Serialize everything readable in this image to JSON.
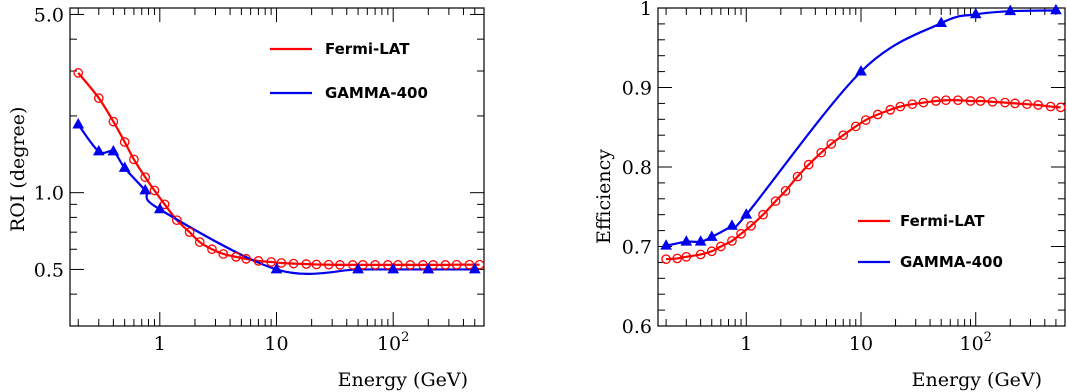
{
  "colors": {
    "fermi": "#ff0000",
    "gamma": "#0000ee"
  },
  "chart_data": [
    {
      "id": "roi",
      "type": "line",
      "xscale": "log",
      "yscale": "log",
      "xlim": [
        0.17,
        600
      ],
      "ylim": [
        0.3,
        5.3
      ],
      "xlabel": "Energy (GeV)",
      "ylabel": "ROI (degree)",
      "xticks": [
        {
          "value": 1,
          "label": "1"
        },
        {
          "value": 10,
          "label": "10"
        },
        {
          "value": 100,
          "label": "10",
          "sup": "2"
        }
      ],
      "yticks": [
        {
          "value": 0.5,
          "label": "0.5"
        },
        {
          "value": 1.0,
          "label": "1.0"
        },
        {
          "value": 5.0,
          "label": "5.0"
        }
      ],
      "grid": false,
      "legend_position": "top-right",
      "series": [
        {
          "name": "Fermi-LAT",
          "color_key": "fermi",
          "marker": "open-circle",
          "points": [
            [
              0.2,
              2.95
            ],
            [
              0.3,
              2.35
            ],
            [
              0.4,
              1.9
            ],
            [
              0.5,
              1.58
            ],
            [
              0.6,
              1.35
            ],
            [
              0.75,
              1.15
            ],
            [
              0.9,
              1.02
            ],
            [
              1.1,
              0.9
            ],
            [
              1.4,
              0.78
            ],
            [
              1.8,
              0.7
            ],
            [
              2.2,
              0.64
            ],
            [
              2.8,
              0.6
            ],
            [
              3.5,
              0.575
            ],
            [
              4.5,
              0.56
            ],
            [
              5.5,
              0.55
            ],
            [
              7,
              0.54
            ],
            [
              9,
              0.535
            ],
            [
              11,
              0.53
            ],
            [
              14,
              0.527
            ],
            [
              18,
              0.525
            ],
            [
              22,
              0.523
            ],
            [
              28,
              0.522
            ],
            [
              35,
              0.521
            ],
            [
              45,
              0.521
            ],
            [
              55,
              0.521
            ],
            [
              70,
              0.521
            ],
            [
              90,
              0.521
            ],
            [
              110,
              0.521
            ],
            [
              140,
              0.521
            ],
            [
              180,
              0.521
            ],
            [
              220,
              0.521
            ],
            [
              280,
              0.521
            ],
            [
              350,
              0.522
            ],
            [
              450,
              0.522
            ],
            [
              550,
              0.522
            ]
          ]
        },
        {
          "name": "GAMMA-400",
          "color_key": "gamma",
          "marker": "filled-triangle",
          "points": [
            [
              0.2,
              1.85
            ],
            [
              0.3,
              1.45
            ],
            [
              0.4,
              1.45
            ],
            [
              0.5,
              1.25
            ],
            [
              0.75,
              1.02
            ],
            [
              1.0,
              0.86
            ],
            [
              10,
              0.5
            ],
            [
              50,
              0.5
            ],
            [
              100,
              0.5
            ],
            [
              200,
              0.5
            ],
            [
              500,
              0.5
            ]
          ]
        }
      ]
    },
    {
      "id": "efficiency",
      "type": "line",
      "xscale": "log",
      "yscale": "linear",
      "xlim": [
        0.17,
        600
      ],
      "ylim": [
        0.6,
        1.0
      ],
      "xlabel": "Energy (GeV)",
      "ylabel": "Efficiency",
      "xticks": [
        {
          "value": 1,
          "label": "1"
        },
        {
          "value": 10,
          "label": "10"
        },
        {
          "value": 100,
          "label": "10",
          "sup": "2"
        }
      ],
      "yticks": [
        {
          "value": 0.6,
          "label": "0.6"
        },
        {
          "value": 0.7,
          "label": "0.7"
        },
        {
          "value": 0.8,
          "label": "0.8"
        },
        {
          "value": 0.9,
          "label": "0.9"
        },
        {
          "value": 1.0,
          "label": "1"
        }
      ],
      "grid": false,
      "legend_position": "bottom-right",
      "series": [
        {
          "name": "Fermi-LAT",
          "color_key": "fermi",
          "marker": "open-circle",
          "points": [
            [
              0.2,
              0.684
            ],
            [
              0.25,
              0.685
            ],
            [
              0.3,
              0.687
            ],
            [
              0.4,
              0.69
            ],
            [
              0.5,
              0.694
            ],
            [
              0.6,
              0.7
            ],
            [
              0.75,
              0.707
            ],
            [
              0.9,
              0.716
            ],
            [
              1.1,
              0.726
            ],
            [
              1.4,
              0.74
            ],
            [
              1.8,
              0.757
            ],
            [
              2.2,
              0.77
            ],
            [
              2.8,
              0.788
            ],
            [
              3.5,
              0.803
            ],
            [
              4.5,
              0.818
            ],
            [
              5.5,
              0.829
            ],
            [
              7,
              0.84
            ],
            [
              9,
              0.851
            ],
            [
              11,
              0.859
            ],
            [
              14,
              0.866
            ],
            [
              18,
              0.872
            ],
            [
              22,
              0.876
            ],
            [
              28,
              0.879
            ],
            [
              35,
              0.881
            ],
            [
              45,
              0.883
            ],
            [
              55,
              0.884
            ],
            [
              70,
              0.884
            ],
            [
              90,
              0.883
            ],
            [
              110,
              0.883
            ],
            [
              140,
              0.882
            ],
            [
              180,
              0.881
            ],
            [
              220,
              0.88
            ],
            [
              280,
              0.879
            ],
            [
              350,
              0.878
            ],
            [
              450,
              0.876
            ],
            [
              550,
              0.875
            ]
          ]
        },
        {
          "name": "GAMMA-400",
          "color_key": "gamma",
          "marker": "filled-triangle",
          "points": [
            [
              0.2,
              0.701
            ],
            [
              0.3,
              0.706
            ],
            [
              0.4,
              0.706
            ],
            [
              0.5,
              0.712
            ],
            [
              0.75,
              0.726
            ],
            [
              1.0,
              0.74
            ],
            [
              10,
              0.92
            ],
            [
              50,
              0.981
            ],
            [
              100,
              0.992
            ],
            [
              200,
              0.996
            ],
            [
              500,
              0.997
            ]
          ]
        }
      ]
    }
  ]
}
